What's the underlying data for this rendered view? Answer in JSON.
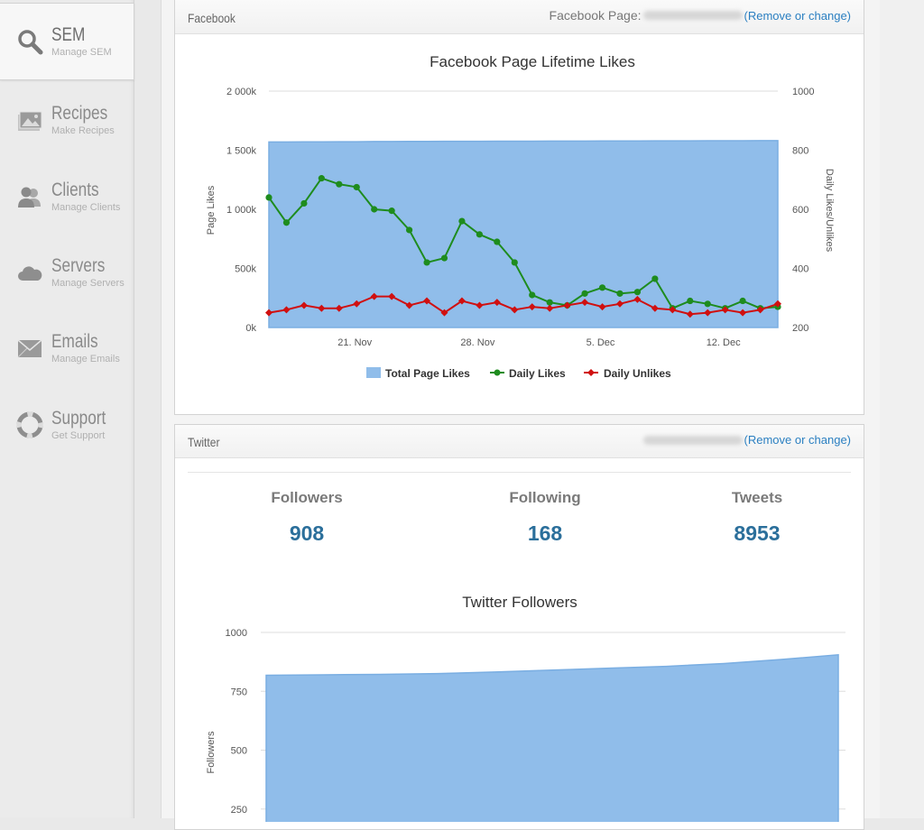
{
  "sidebar": {
    "items": [
      {
        "title": "SEM",
        "subtitle": "Manage SEM",
        "icon": "search-icon",
        "active": true
      },
      {
        "title": "Recipes",
        "subtitle": "Make Recipes",
        "icon": "image-icon",
        "active": false
      },
      {
        "title": "Clients",
        "subtitle": "Manage Clients",
        "icon": "users-icon",
        "active": false
      },
      {
        "title": "Servers",
        "subtitle": "Manage Servers",
        "icon": "cloud-icon",
        "active": false
      },
      {
        "title": "Emails",
        "subtitle": "Manage Emails",
        "icon": "envelope-icon",
        "active": false
      },
      {
        "title": "Support",
        "subtitle": "Get Support",
        "icon": "lifebuoy-icon",
        "active": false
      }
    ]
  },
  "facebook": {
    "panel_title": "Facebook",
    "page_label": "Facebook Page:",
    "change_link": "(Remove or change)"
  },
  "twitter": {
    "panel_title": "Twitter",
    "change_link": "(Remove or change)",
    "stats": [
      {
        "label": "Followers",
        "value": "908"
      },
      {
        "label": "Following",
        "value": "168"
      },
      {
        "label": "Tweets",
        "value": "8953"
      }
    ]
  },
  "colors": {
    "area": "#90bdea",
    "likes": "#1e8c1e",
    "unlikes": "#d01010",
    "stat_value": "#2b6f9b",
    "link": "#2a7fc1"
  },
  "chart_data": [
    {
      "type": "line",
      "title": "Facebook Page Lifetime Likes",
      "ylabel": "Page Likes",
      "y2label": "Daily Likes/Unlikes",
      "xticks": [
        "21. Nov",
        "28. Nov",
        "5. Dec",
        "12. Dec"
      ],
      "yticks": [
        "0k",
        "500k",
        "1 000k",
        "1 500k",
        "2 000k"
      ],
      "y2ticks": [
        "200",
        "400",
        "600",
        "800",
        "1000"
      ],
      "ylim": [
        0,
        2000000
      ],
      "y2lim": [
        200,
        1000
      ],
      "legend_position": "bottom",
      "x": [
        "2013-11-17",
        "2013-11-18",
        "2013-11-19",
        "2013-11-20",
        "2013-11-21",
        "2013-11-22",
        "2013-11-23",
        "2013-11-24",
        "2013-11-25",
        "2013-11-26",
        "2013-11-27",
        "2013-11-28",
        "2013-11-29",
        "2013-11-30",
        "2013-12-01",
        "2013-12-02",
        "2013-12-03",
        "2013-12-04",
        "2013-12-05",
        "2013-12-06",
        "2013-12-07",
        "2013-12-08",
        "2013-12-09",
        "2013-12-10",
        "2013-12-11",
        "2013-12-12",
        "2013-12-13",
        "2013-12-14",
        "2013-12-15",
        "2013-12-16"
      ],
      "series": [
        {
          "name": "Total Page Likes",
          "type": "area",
          "axis": "left",
          "values": [
            1570000,
            1570000,
            1571000,
            1571000,
            1572000,
            1572000,
            1573000,
            1573000,
            1574000,
            1574000,
            1575000,
            1575000,
            1575000,
            1576000,
            1576000,
            1576000,
            1577000,
            1577000,
            1577000,
            1578000,
            1578000,
            1578000,
            1579000,
            1579000,
            1579000,
            1580000,
            1580000,
            1580000,
            1581000,
            1581000
          ]
        },
        {
          "name": "Daily Likes",
          "type": "line",
          "axis": "right",
          "values": [
            640,
            555,
            620,
            705,
            685,
            675,
            600,
            595,
            530,
            420,
            435,
            560,
            515,
            490,
            420,
            310,
            285,
            275,
            315,
            335,
            315,
            320,
            365,
            265,
            290,
            280,
            265,
            290,
            265,
            270
          ]
        },
        {
          "name": "Daily Unlikes",
          "type": "line",
          "axis": "right",
          "values": [
            250,
            260,
            275,
            265,
            265,
            280,
            305,
            305,
            275,
            290,
            250,
            290,
            275,
            285,
            260,
            270,
            265,
            275,
            285,
            270,
            280,
            295,
            265,
            260,
            245,
            250,
            260,
            250,
            260,
            280
          ]
        }
      ]
    },
    {
      "type": "area",
      "title": "Twitter Followers",
      "ylabel": "Followers",
      "yticks": [
        "250",
        "500",
        "750",
        "1000"
      ],
      "ylim": [
        0,
        1000
      ],
      "series": [
        {
          "name": "Followers",
          "values": [
            818,
            820,
            822,
            825,
            832,
            840,
            848,
            856,
            868,
            885,
            905
          ]
        }
      ]
    }
  ]
}
